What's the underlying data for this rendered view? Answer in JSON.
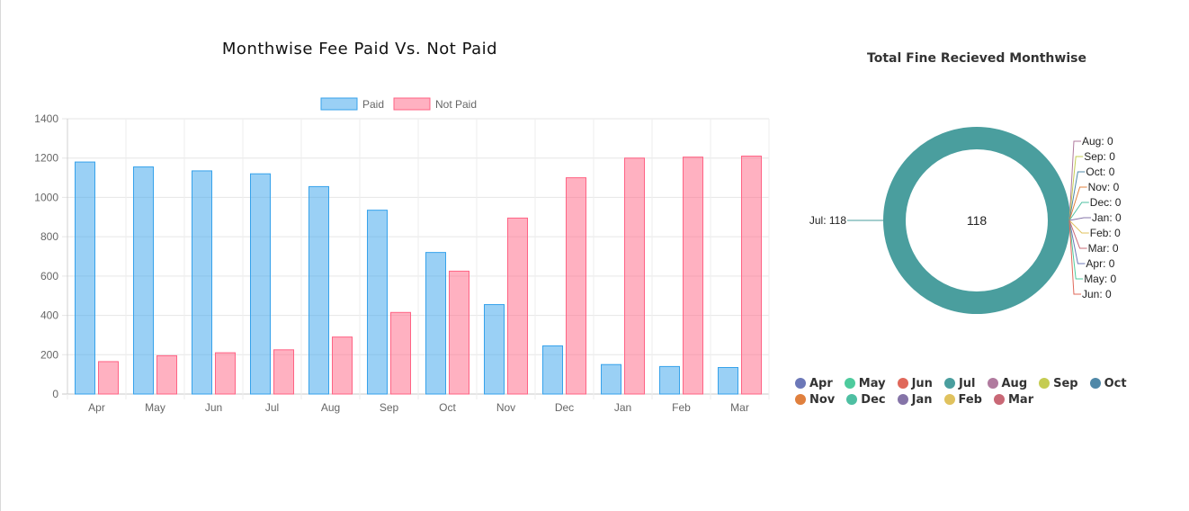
{
  "chart_data": [
    {
      "type": "bar",
      "title": "Monthwise Fee Paid Vs. Not Paid",
      "categories": [
        "Apr",
        "May",
        "Jun",
        "Jul",
        "Aug",
        "Sep",
        "Oct",
        "Nov",
        "Dec",
        "Jan",
        "Feb",
        "Mar"
      ],
      "series": [
        {
          "name": "Paid",
          "values": [
            1180,
            1155,
            1135,
            1120,
            1055,
            935,
            720,
            455,
            245,
            150,
            140,
            135
          ],
          "color": "#36a2eb"
        },
        {
          "name": "Not Paid",
          "values": [
            165,
            195,
            210,
            225,
            290,
            415,
            625,
            895,
            1100,
            1200,
            1205,
            1210
          ],
          "color": "#ff6384"
        }
      ],
      "yticks": [
        0,
        200,
        400,
        600,
        800,
        1000,
        1200,
        1400
      ],
      "ylim": [
        0,
        1400
      ],
      "legend": "top",
      "grid": true
    },
    {
      "type": "pie",
      "title": "Total Fine Recieved Monthwise",
      "center_label": "118",
      "slices": [
        {
          "label": "Apr",
          "value": 0,
          "text": "Apr: 0",
          "color": "#6c78b8"
        },
        {
          "label": "May",
          "value": 0,
          "text": "May: 0",
          "color": "#4ecb9d"
        },
        {
          "label": "Jun",
          "value": 0,
          "text": "Jun: 0",
          "color": "#e0685a"
        },
        {
          "label": "Jul",
          "value": 118,
          "text": "Jul: 118",
          "color": "#4a9e9e"
        },
        {
          "label": "Aug",
          "value": 0,
          "text": "Aug: 0",
          "color": "#b07a9e"
        },
        {
          "label": "Sep",
          "value": 0,
          "text": "Sep: 0",
          "color": "#c5cc52"
        },
        {
          "label": "Oct",
          "value": 0,
          "text": "Oct: 0",
          "color": "#4f88a8"
        },
        {
          "label": "Nov",
          "value": 0,
          "text": "Nov: 0",
          "color": "#e0803e"
        },
        {
          "label": "Dec",
          "value": 0,
          "text": "Dec: 0",
          "color": "#4ebfa2"
        },
        {
          "label": "Jan",
          "value": 0,
          "text": "Jan: 0",
          "color": "#8574a8"
        },
        {
          "label": "Feb",
          "value": 0,
          "text": "Feb: 0",
          "color": "#e0c25e"
        },
        {
          "label": "Mar",
          "value": 0,
          "text": "Mar: 0",
          "color": "#c96876"
        }
      ],
      "legend": "bottom"
    }
  ]
}
